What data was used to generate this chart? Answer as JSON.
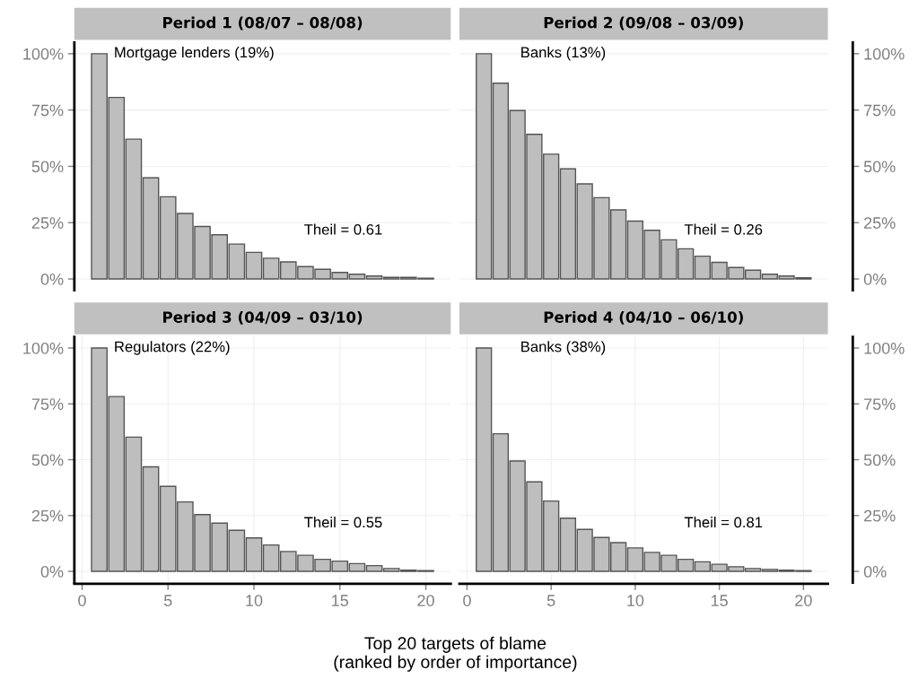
{
  "chart_data": [
    {
      "type": "bar",
      "title": "Period 1 (08/07 – 08/08)",
      "x": [
        1,
        2,
        3,
        4,
        5,
        6,
        7,
        8,
        9,
        10,
        11,
        12,
        13,
        14,
        15,
        16,
        17,
        18,
        19,
        20
      ],
      "series": [
        {
          "color": "#bebebe",
          "values": [
            100,
            80.6,
            62.1,
            44.9,
            36.5,
            29.1,
            23.3,
            19.6,
            15.5,
            11.8,
            9.2,
            7.6,
            5.5,
            4.3,
            2.9,
            2.1,
            1.3,
            0.7,
            0.7,
            0.3
          ]
        }
      ],
      "annotations": [
        "Mortgage lenders (19%)",
        "Theil = 0.61"
      ],
      "xlim": [
        -0.45,
        21.45
      ],
      "ylim": [
        -5,
        105
      ],
      "yticks": [
        {
          "value": 0,
          "label": "0%"
        },
        {
          "value": 25,
          "label": "25%"
        },
        {
          "value": 50,
          "label": "50%"
        },
        {
          "value": 75,
          "label": "75%"
        },
        {
          "value": 100,
          "label": "100%"
        }
      ],
      "grid": true,
      "tick_labels": "y"
    },
    {
      "type": "bar",
      "title": "Period 2 (09/08 – 03/09)",
      "x": [
        1,
        2,
        3,
        4,
        5,
        6,
        7,
        8,
        9,
        10,
        11,
        12,
        13,
        14,
        15,
        16,
        17,
        18,
        19,
        20
      ],
      "series": [
        {
          "color": "#bebebe",
          "axis": "y2",
          "values": [
            100,
            86.9,
            74.8,
            64.2,
            55.4,
            48.9,
            42.2,
            36.1,
            30.7,
            25.7,
            21.6,
            17.4,
            13.4,
            10.1,
            7.4,
            5.1,
            3.9,
            2.1,
            1.3,
            0.5
          ]
        }
      ],
      "annotations": [
        "Banks (13%)",
        "Theil = 0.26"
      ],
      "xlim": [
        -0.45,
        21.45
      ],
      "y2lim": [
        -5,
        105
      ],
      "y2ticks": [
        {
          "value": 0,
          "label": "0%"
        },
        {
          "value": 25,
          "label": "25%"
        },
        {
          "value": 50,
          "label": "50%"
        },
        {
          "value": 75,
          "label": "75%"
        },
        {
          "value": 100,
          "label": "100%"
        }
      ],
      "grid": true,
      "tick_labels": "y"
    },
    {
      "type": "bar",
      "title": "Period 3 (04/09 – 03/10)",
      "xlabel": "Top 20 targets of blame\n(ranked by order of importance)",
      "x": [
        1,
        2,
        3,
        4,
        5,
        6,
        7,
        8,
        9,
        10,
        11,
        12,
        13,
        14,
        15,
        16,
        17,
        18,
        19,
        20
      ],
      "series": [
        {
          "color": "#bebebe",
          "values": [
            100,
            78.3,
            60.1,
            46.8,
            38.1,
            31.1,
            25.4,
            21.6,
            18.4,
            15.0,
            11.8,
            8.9,
            7.2,
            5.4,
            4.6,
            3.5,
            2.6,
            1.3,
            0.5,
            0.3
          ]
        }
      ],
      "annotations": [
        "Regulators (22%)",
        "Theil = 0.55"
      ],
      "xlim": [
        -0.45,
        21.45
      ],
      "xticks": [
        0,
        5,
        10,
        15,
        20
      ],
      "ylim": [
        -5,
        105
      ],
      "yticks": [
        {
          "value": 0,
          "label": "0%"
        },
        {
          "value": 25,
          "label": "25%"
        },
        {
          "value": 50,
          "label": "50%"
        },
        {
          "value": 75,
          "label": "75%"
        },
        {
          "value": 100,
          "label": "100%"
        }
      ],
      "grid": true
    },
    {
      "type": "bar",
      "title": "Period 4 (04/10 – 06/10)",
      "x": [
        1,
        2,
        3,
        4,
        5,
        6,
        7,
        8,
        9,
        10,
        11,
        12,
        13,
        14,
        15,
        16,
        17,
        18,
        19,
        20
      ],
      "series": [
        {
          "color": "#bebebe",
          "axis": "y2",
          "values": [
            100,
            61.6,
            49.4,
            40.1,
            31.5,
            23.8,
            18.8,
            15.2,
            12.9,
            10.5,
            8.5,
            7.2,
            5.4,
            4.3,
            3.2,
            2.1,
            1.3,
            0.9,
            0.5,
            0.3
          ]
        }
      ],
      "annotations": [
        "Banks (38%)",
        "Theil = 0.81"
      ],
      "xlim": [
        -0.45,
        21.45
      ],
      "xticks": [
        0,
        5,
        10,
        15,
        20
      ],
      "y2lim": [
        -5,
        105
      ],
      "y2ticks": [
        {
          "value": 0,
          "label": "0%"
        },
        {
          "value": 25,
          "label": "25%"
        },
        {
          "value": 50,
          "label": "50%"
        },
        {
          "value": 75,
          "label": "75%"
        },
        {
          "value": 100,
          "label": "100%"
        }
      ],
      "grid": true
    }
  ]
}
